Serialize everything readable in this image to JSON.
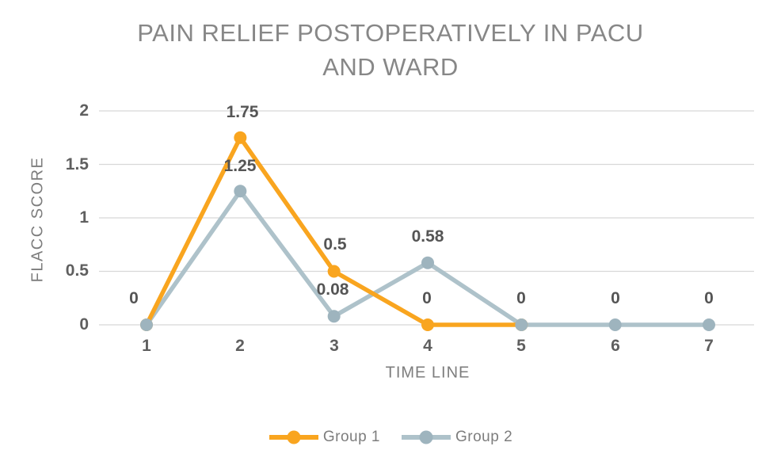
{
  "title": {
    "line1": "PAIN RELIEF POSTOPERATIVELY IN PACU",
    "line2": "AND WARD"
  },
  "chart_data": {
    "type": "line",
    "title": "PAIN RELIEF POSTOPERATIVELY IN PACU AND WARD",
    "xlabel": "TIME LINE",
    "ylabel": "FLACC SCORE",
    "x": [
      1,
      2,
      3,
      4,
      5,
      6,
      7
    ],
    "xtick_labels": [
      "1",
      "2",
      "3",
      "4",
      "5",
      "6",
      "7"
    ],
    "yticks": [
      2,
      1.5,
      1,
      0.5,
      0
    ],
    "ytick_labels": [
      "2",
      "1.5",
      "1",
      "0.5",
      "0"
    ],
    "ylim": [
      0,
      2
    ],
    "grid": true,
    "legend_position": "bottom",
    "series": [
      {
        "name": "Group 1",
        "color": "#F9A51F",
        "marker_color": "#F9A51F",
        "values": [
          0,
          1.75,
          0.5,
          0,
          0,
          null,
          null
        ]
      },
      {
        "name": "Group 2",
        "color": "#AEC2CA",
        "marker_color": "#9EB4BE",
        "values": [
          0,
          1.25,
          0.08,
          0.58,
          0,
          0,
          0
        ]
      }
    ],
    "point_labels": [
      {
        "x": 1,
        "text": "0"
      },
      {
        "x": 2,
        "series": "Group 1",
        "text": "1.75"
      },
      {
        "x": 2,
        "series": "Group 2",
        "text": "1.25"
      },
      {
        "x": 3,
        "series": "Group 1",
        "text": "0.5"
      },
      {
        "x": 3,
        "series": "Group 2",
        "text": "0.08"
      },
      {
        "x": 4,
        "series": "Group 2",
        "text": "0.58"
      },
      {
        "x": 4,
        "series": "Group 1",
        "text": "0"
      },
      {
        "x": 5,
        "text": "0"
      },
      {
        "x": 6,
        "text": "0"
      },
      {
        "x": 7,
        "text": "0"
      }
    ]
  },
  "legend": {
    "items": [
      {
        "label": "Group 1",
        "color": "#F9A51F",
        "marker_color": "#F9A51F"
      },
      {
        "label": "Group 2",
        "color": "#AEC2CA",
        "marker_color": "#9EB4BE"
      }
    ]
  },
  "colors": {
    "background": "#FFFFFF",
    "grid": "#D8D8D8",
    "title": "#878787",
    "tick": "#5F5F5F",
    "data_label": "#555555",
    "axis_title": "#7D7D7D",
    "legend_text": "#7D7D7D"
  }
}
